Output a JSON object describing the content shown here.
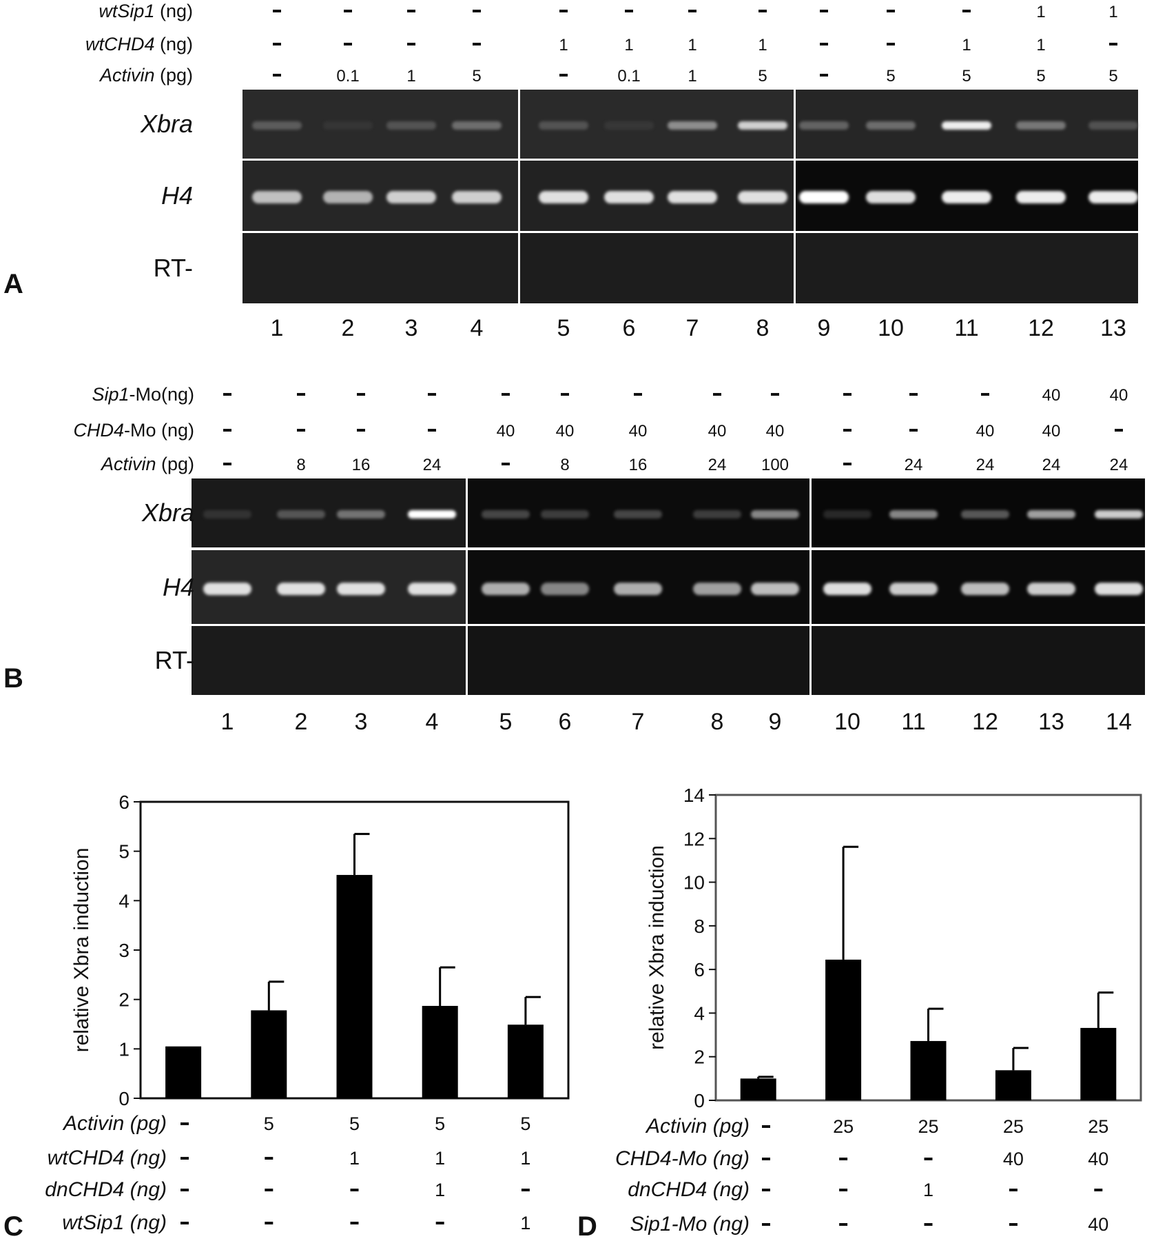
{
  "panel_a": {
    "letter": "A",
    "rows": [
      {
        "label_it": "wtSip1",
        "label_rest": " (ng)",
        "values": [
          "-",
          "-",
          "-",
          "-",
          "-",
          "-",
          "-",
          "-",
          "-",
          "-",
          "-",
          "1",
          "1"
        ]
      },
      {
        "label_it": "wtCHD4",
        "label_rest": " (ng)",
        "values": [
          "-",
          "-",
          "-",
          "-",
          "1",
          "1",
          "1",
          "1",
          "-",
          "-",
          "1",
          "1",
          "-"
        ]
      },
      {
        "label_it": "Activin",
        "label_rest": " (pg)",
        "values": [
          "-",
          "0.1",
          "1",
          "5",
          "-",
          "0.1",
          "1",
          "5",
          "-",
          "5",
          "5",
          "5",
          "5"
        ]
      }
    ],
    "gel_labels": [
      "Xbra",
      "H4",
      "RT-"
    ],
    "gel_label_italic": [
      true,
      true,
      false
    ],
    "lanes": [
      "1",
      "2",
      "3",
      "4",
      "5",
      "6",
      "7",
      "8",
      "9",
      "10",
      "11",
      "12",
      "13"
    ],
    "xbra_intensity": [
      0.35,
      0.05,
      0.3,
      0.45,
      0.3,
      0.08,
      0.6,
      0.85,
      0.4,
      0.45,
      0.95,
      0.5,
      0.3
    ],
    "h4_intensity": [
      0.8,
      0.75,
      0.85,
      0.85,
      0.9,
      0.9,
      0.9,
      0.9,
      1.0,
      0.9,
      0.95,
      0.95,
      0.95
    ]
  },
  "panel_b": {
    "letter": "B",
    "rows": [
      {
        "label_it": "Sip1",
        "label_rest": "-Mo(ng)",
        "values": [
          "-",
          "-",
          "-",
          "-",
          "-",
          "-",
          "-",
          "-",
          "-",
          "-",
          "-",
          "-",
          "40",
          "40"
        ]
      },
      {
        "label_it": "CHD4",
        "label_rest": "-Mo (ng)",
        "values": [
          "-",
          "-",
          "-",
          "-",
          "40",
          "40",
          "40",
          "40",
          "40",
          "-",
          "-",
          "40",
          "40",
          "-"
        ]
      },
      {
        "label_it": "Activin",
        "label_rest": " (pg)",
        "values": [
          "-",
          "8",
          "16",
          "24",
          "-",
          "8",
          "16",
          "24",
          "100",
          "-",
          "24",
          "24",
          "24",
          "24"
        ]
      }
    ],
    "gel_labels": [
      "Xbra",
      "H4",
      "RT-"
    ],
    "gel_label_italic": [
      true,
      true,
      false
    ],
    "lanes": [
      "1",
      "2",
      "3",
      "4",
      "5",
      "6",
      "7",
      "8",
      "9",
      "10",
      "11",
      "12",
      "13",
      "14"
    ],
    "xbra_intensity": [
      0.12,
      0.35,
      0.5,
      1.0,
      0.3,
      0.25,
      0.3,
      0.25,
      0.6,
      0.12,
      0.6,
      0.4,
      0.7,
      0.85
    ],
    "h4_intensity": [
      0.9,
      0.9,
      0.9,
      0.9,
      0.75,
      0.6,
      0.75,
      0.7,
      0.8,
      0.9,
      0.85,
      0.8,
      0.85,
      0.9
    ]
  },
  "chart_data": [
    {
      "type": "bar",
      "panel": "C",
      "ylabel": "relative Xbra induction",
      "ylim": [
        0,
        6
      ],
      "yticks": [
        "0",
        "1",
        "2",
        "3",
        "4",
        "5",
        "6"
      ],
      "values": [
        1.05,
        1.78,
        4.52,
        1.87,
        1.49
      ],
      "errors": [
        0,
        0.58,
        0.83,
        0.78,
        0.56
      ],
      "grid": false,
      "conditions": [
        {
          "label": "Activin (pg)",
          "values": [
            "-",
            "5",
            "5",
            "5",
            "5"
          ]
        },
        {
          "label": "wtCHD4 (ng)",
          "values": [
            "-",
            "-",
            "1",
            "1",
            "1"
          ]
        },
        {
          "label": "dnCHD4 (ng)",
          "values": [
            "-",
            "-",
            "-",
            "1",
            "-"
          ]
        },
        {
          "label": "wtSip1 (ng)",
          "values": [
            "-",
            "-",
            "-",
            "-",
            "1"
          ]
        }
      ]
    },
    {
      "type": "bar",
      "panel": "D",
      "ylabel": "relative Xbra induction",
      "ylim": [
        0,
        14
      ],
      "yticks": [
        "0",
        "2",
        "4",
        "6",
        "8",
        "10",
        "12",
        "14"
      ],
      "values": [
        1.0,
        6.45,
        2.72,
        1.38,
        3.32
      ],
      "errors": [
        0.08,
        5.17,
        1.48,
        1.02,
        1.62
      ],
      "grid": false,
      "conditions": [
        {
          "label": "Activin (pg)",
          "values": [
            "-",
            "25",
            "25",
            "25",
            "25"
          ]
        },
        {
          "label": "CHD4-Mo (ng)",
          "values": [
            "-",
            "-",
            "-",
            "40",
            "40"
          ]
        },
        {
          "label": "dnCHD4 (ng)",
          "values": [
            "-",
            "-",
            "1",
            "-",
            "-"
          ]
        },
        {
          "label": "Sip1-Mo (ng)",
          "values": [
            "-",
            "-",
            "-",
            "-",
            "40"
          ]
        }
      ]
    }
  ]
}
